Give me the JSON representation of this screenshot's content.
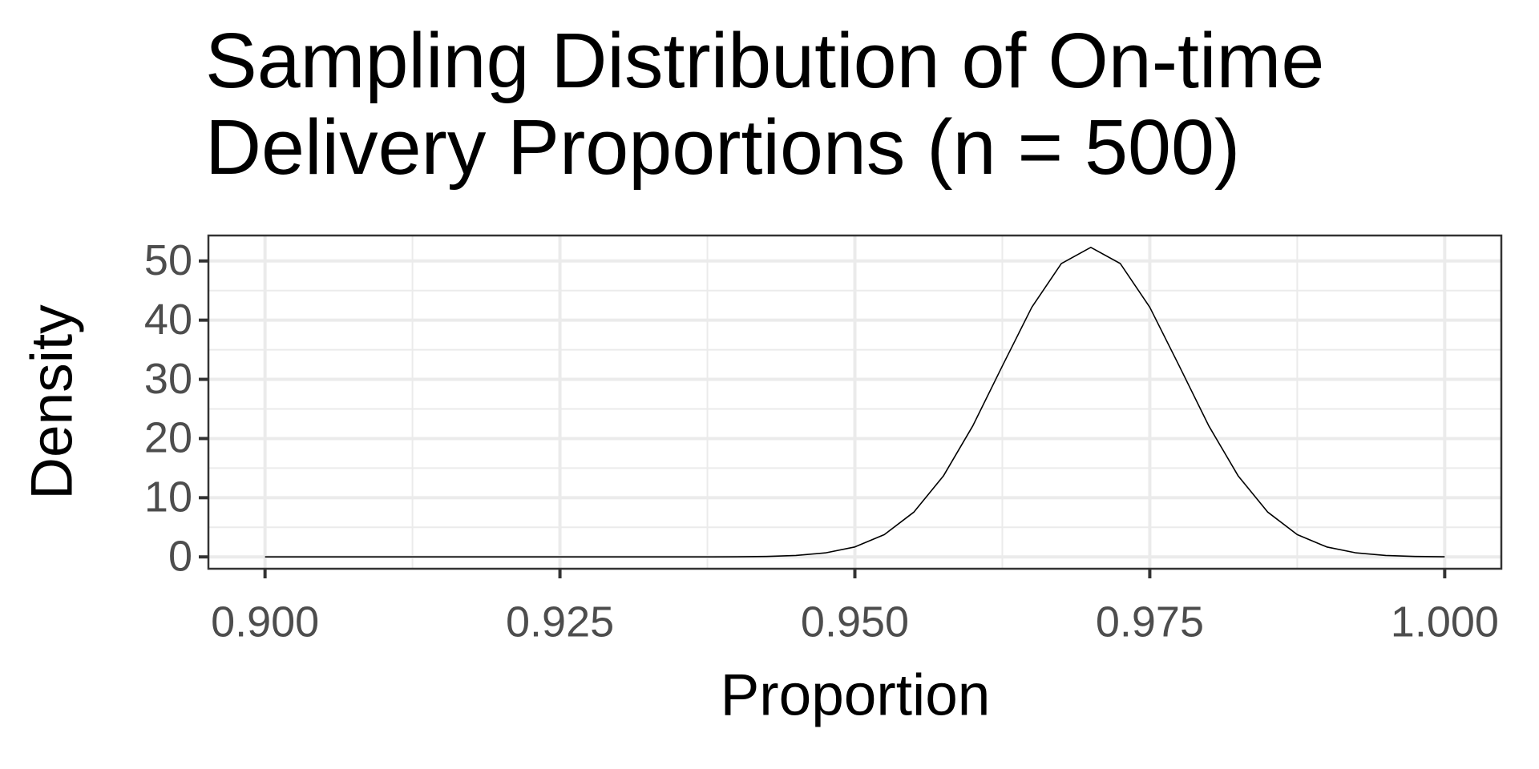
{
  "chart_data": {
    "type": "line",
    "title": "Sampling Distribution of On-time Delivery Proportions (n = 500)",
    "x_label": "Proportion",
    "y_label": "Density",
    "x": [
      0.9,
      0.9025,
      0.905,
      0.9075,
      0.91,
      0.9125,
      0.915,
      0.9175,
      0.92,
      0.9225,
      0.925,
      0.9275,
      0.93,
      0.9325,
      0.935,
      0.9375,
      0.94,
      0.9425,
      0.945,
      0.9475,
      0.95,
      0.9525,
      0.955,
      0.9575,
      0.96,
      0.9625,
      0.965,
      0.9675,
      0.97,
      0.9725,
      0.975,
      0.9775,
      0.98,
      0.9825,
      0.985,
      0.9875,
      0.99,
      0.9925,
      0.995,
      0.9975,
      1.0
    ],
    "values": [
      0,
      0,
      0,
      0,
      0,
      0,
      0,
      0,
      0,
      0,
      0,
      0,
      0,
      0,
      0,
      0.006,
      0.023,
      0.079,
      0.243,
      0.676,
      1.683,
      3.766,
      7.566,
      13.66,
      22.15,
      32.25,
      42.18,
      49.56,
      52.29,
      49.56,
      42.18,
      32.25,
      22.15,
      13.66,
      7.566,
      3.766,
      1.683,
      0.676,
      0.243,
      0.079,
      0.023
    ],
    "color": "#000000",
    "xlim": [
      0.8952,
      1.0048
    ],
    "ylim": [
      -2,
      54.3
    ],
    "xticks": [
      {
        "value": 0.9,
        "label": "0.900"
      },
      {
        "value": 0.925,
        "label": "0.925"
      },
      {
        "value": 0.95,
        "label": "0.950"
      },
      {
        "value": 0.975,
        "label": "0.975"
      },
      {
        "value": 1.0,
        "label": "1.000"
      }
    ],
    "yticks": [
      0,
      10,
      20,
      30,
      40,
      50
    ],
    "xminorticks": [
      0.9125,
      0.9375,
      0.9625,
      0.9875
    ],
    "yminorticks": [
      5,
      15,
      25,
      35,
      45
    ],
    "grid": true
  }
}
